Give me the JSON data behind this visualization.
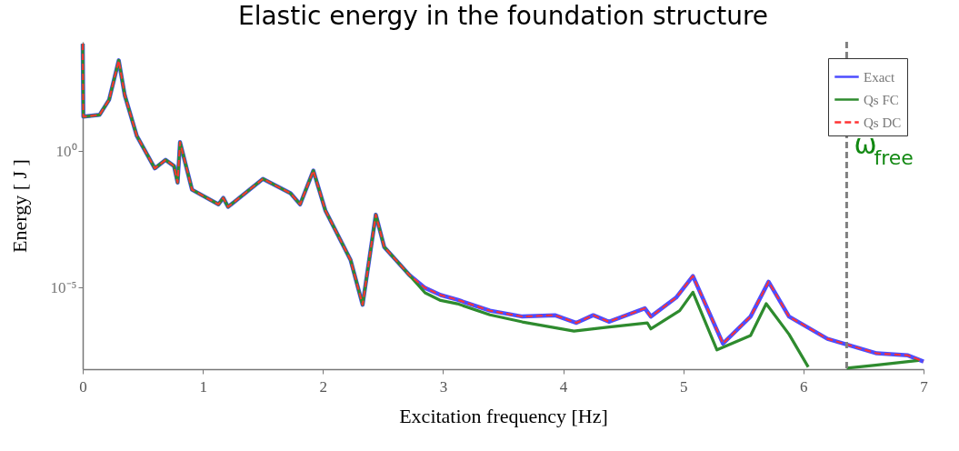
{
  "chart_data": {
    "type": "line",
    "title": "Elastic energy in the foundation structure",
    "xlabel": "Excitation frequency [Hz]",
    "ylabel": "Energy [ J ]",
    "log": "y",
    "xlim": [
      0,
      7
    ],
    "xticks": [
      0,
      1,
      2,
      3,
      4,
      5,
      6,
      7
    ],
    "ylim": [
      1e-08,
      10000.0
    ],
    "yticks": [
      {
        "value": 1,
        "label": "10⁰"
      },
      {
        "value": 1e-05,
        "label": "10⁻⁵"
      }
    ],
    "grid": false,
    "legend": "top right",
    "marker": "none",
    "series": [
      {
        "name": "Exact",
        "color": "#4d4dff",
        "line_style": "solid",
        "x": [
          0,
          0.005,
          0.14,
          0.22,
          0.3,
          0.35,
          0.45,
          0.6,
          0.69,
          0.76,
          0.79,
          0.81,
          0.91,
          1.13,
          1.17,
          1.21,
          1.5,
          1.73,
          1.81,
          1.92,
          2.02,
          2.23,
          2.33,
          2.44,
          2.51,
          2.72,
          2.85,
          2.98,
          3.12,
          3.39,
          3.66,
          3.93,
          4.11,
          4.25,
          4.38,
          4.68,
          4.73,
          4.94,
          5.08,
          5.33,
          5.56,
          5.71,
          5.88,
          6.2,
          6.61,
          6.87,
          7.0
        ],
        "values": [
          8500,
          18,
          21,
          76,
          2100,
          110,
          3.6,
          0.23,
          0.47,
          0.28,
          0.069,
          2.1,
          0.038,
          0.011,
          0.019,
          0.0089,
          0.095,
          0.028,
          0.011,
          0.19,
          0.0066,
          0.0001,
          2.3e-06,
          0.0046,
          0.0003,
          2.8e-05,
          9.5e-06,
          5.2e-06,
          3.5e-06,
          1.4e-06,
          8.5e-07,
          9.5e-07,
          5e-07,
          9.5e-07,
          5.5e-07,
          1.7e-06,
          8.5e-07,
          4.2e-06,
          2.6e-05,
          8.7e-08,
          8.5e-07,
          1.6e-05,
          8.5e-07,
          1.3e-07,
          3.8e-08,
          3.2e-08,
          1.9e-08
        ]
      },
      {
        "name": "Qs FC",
        "color": "#2e8b2e",
        "line_style": "solid",
        "x": [
          0,
          0.005,
          0.14,
          0.22,
          0.3,
          0.35,
          0.45,
          0.6,
          0.69,
          0.76,
          0.79,
          0.81,
          0.91,
          1.13,
          1.17,
          1.21,
          1.5,
          1.73,
          1.81,
          1.92,
          2.02,
          2.23,
          2.33,
          2.44,
          2.51,
          2.72,
          2.85,
          2.98,
          3.12,
          3.39,
          3.66,
          4.09,
          4.35,
          4.7,
          4.73,
          4.97,
          5.08,
          5.28,
          5.56,
          5.69,
          5.88,
          6.04,
          6.2,
          6.36,
          6.6,
          6.96
        ],
        "values": [
          8500,
          18,
          21,
          76,
          2100,
          110,
          3.6,
          0.23,
          0.47,
          0.28,
          0.069,
          2.1,
          0.038,
          0.011,
          0.019,
          0.0089,
          0.095,
          0.028,
          0.011,
          0.19,
          0.0066,
          0.0001,
          2.3e-06,
          0.0046,
          0.0003,
          2.8e-05,
          6.3e-06,
          3.3e-06,
          2.5e-06,
          9.8e-07,
          5.4e-07,
          2.5e-07,
          3.4e-07,
          5e-07,
          3e-07,
          1.4e-06,
          6.6e-06,
          5.1e-08,
          1.7e-07,
          2.5e-06,
          1.9e-07,
          1.2e-08,
          null,
          1.1e-08,
          1.4e-08,
          2.1e-08
        ]
      },
      {
        "name": "Qs DC",
        "color": "#ff3333",
        "line_style": "dashed",
        "x": [
          0,
          0.005,
          0.14,
          0.22,
          0.3,
          0.35,
          0.45,
          0.6,
          0.69,
          0.76,
          0.79,
          0.81,
          0.91,
          1.13,
          1.17,
          1.21,
          1.5,
          1.73,
          1.81,
          1.92,
          2.02,
          2.23,
          2.33,
          2.44,
          2.51,
          2.72,
          2.85,
          2.98,
          3.12,
          3.39,
          3.66,
          3.93,
          4.11,
          4.25,
          4.38,
          4.68,
          4.73,
          4.94,
          5.08,
          5.33,
          5.56,
          5.71,
          5.88,
          6.2,
          6.61,
          6.87,
          7.0
        ],
        "values": [
          8500,
          18,
          21,
          76,
          2100,
          110,
          3.6,
          0.23,
          0.47,
          0.28,
          0.069,
          2.1,
          0.038,
          0.011,
          0.019,
          0.0089,
          0.095,
          0.028,
          0.011,
          0.19,
          0.0066,
          0.0001,
          2.3e-06,
          0.0046,
          0.0003,
          2.8e-05,
          9.5e-06,
          5.2e-06,
          3.5e-06,
          1.4e-06,
          8.5e-07,
          9.5e-07,
          5e-07,
          9.5e-07,
          5.5e-07,
          1.7e-06,
          8.5e-07,
          4.2e-06,
          2.6e-05,
          8.7e-08,
          8.5e-07,
          1.6e-05,
          8.5e-07,
          1.3e-07,
          3.8e-08,
          3.2e-08,
          1.9e-08
        ]
      }
    ],
    "ref_lines": [
      {
        "axis": "x",
        "value": 6.36,
        "label": "ω$_{free}$",
        "color": "#808080",
        "line_style": "dashed"
      }
    ]
  }
}
